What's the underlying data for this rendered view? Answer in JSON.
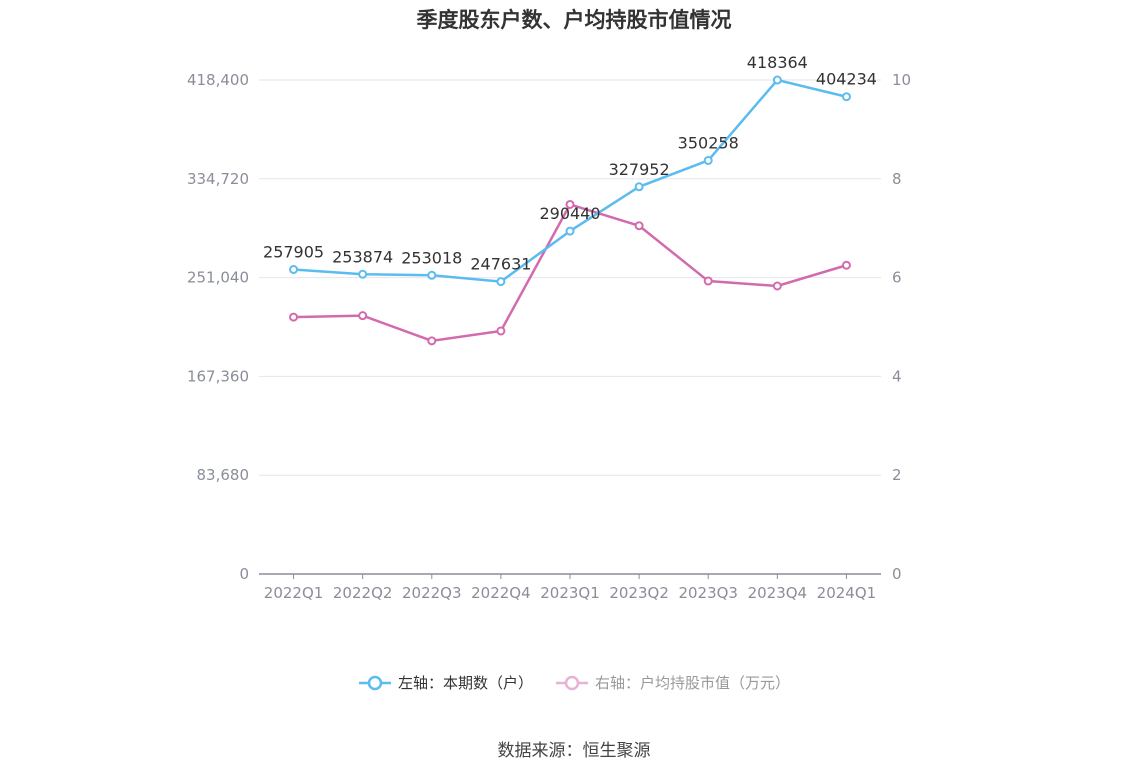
{
  "chart_data": {
    "type": "line",
    "title": "季度股东户数、户均持股市值情况",
    "categories": [
      "2022Q1",
      "2022Q2",
      "2022Q3",
      "2022Q4",
      "2023Q1",
      "2023Q2",
      "2023Q3",
      "2023Q4",
      "2024Q1"
    ],
    "series": [
      {
        "name": "左轴：本期数（户）",
        "axis": "left",
        "color": "#5bbcf0",
        "values": [
          257905,
          253874,
          253018,
          247631,
          290440,
          327952,
          350258,
          418364,
          404234
        ],
        "data_labels": [
          "257905",
          "253874",
          "253018",
          "247631",
          "290440",
          "327952",
          "350258",
          "418364",
          "404234"
        ]
      },
      {
        "name": "右轴：户均持股市值（万元）",
        "axis": "right",
        "color": "#d36aae",
        "values": [
          5.2,
          5.23,
          4.72,
          4.92,
          7.48,
          7.05,
          5.93,
          5.83,
          6.25
        ]
      }
    ],
    "left_axis": {
      "ylim": [
        0,
        418400
      ],
      "ticks": [
        "0",
        "83,680",
        "167,360",
        "251,040",
        "334,720",
        "418,400"
      ]
    },
    "right_axis": {
      "ylim": [
        0,
        10
      ],
      "ticks": [
        "0",
        "2",
        "4",
        "6",
        "8",
        "10"
      ]
    },
    "grid": true,
    "legend_position": "bottom"
  },
  "source": "数据来源：恒生聚源",
  "colors": {
    "left_series": "#5bbcf0",
    "right_series": "#d36aae",
    "grid": "#e3e6ef",
    "axis": "#8a8e99",
    "label": "#333333"
  }
}
